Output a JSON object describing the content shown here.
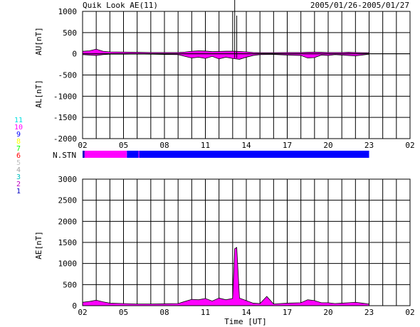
{
  "header": {
    "title": "Quik Look AE(11)",
    "date_range": "2005/01/26-2005/01/27"
  },
  "station_legend": [
    {
      "label": "11",
      "color": "#00e0e0"
    },
    {
      "label": "10",
      "color": "#ff00ff"
    },
    {
      "label": "9",
      "color": "#0000ff"
    },
    {
      "label": "8",
      "color": "#ffff00"
    },
    {
      "label": "7",
      "color": "#00ff00"
    },
    {
      "label": "6",
      "color": "#ff0000"
    },
    {
      "label": "5",
      "color": "#c0c0c0"
    },
    {
      "label": "4",
      "color": "#a0a0a0"
    },
    {
      "label": "3",
      "color": "#00c0c0"
    },
    {
      "label": "2",
      "color": "#c000c0"
    },
    {
      "label": "1",
      "color": "#0000c0"
    }
  ],
  "nstn_label": "N.STN",
  "xlabel": "Time [UT]",
  "chart_data": [
    {
      "type": "area",
      "panel": "AU/AL",
      "ylabels": [
        "AU[nT]",
        "AL[nT]"
      ],
      "ylim": [
        -2000,
        1000
      ],
      "yticks": [
        1000,
        500,
        0,
        -500,
        -1000,
        -1500,
        -2000
      ],
      "xlim": [
        2,
        26
      ],
      "xticks": [
        "02",
        "05",
        "08",
        "11",
        "14",
        "17",
        "20",
        "23",
        "02"
      ],
      "grid": true,
      "fill_color": "#ff00ff",
      "x": [
        2,
        2.5,
        3,
        3.5,
        4,
        5,
        6,
        7,
        8,
        9,
        9.5,
        10,
        10.5,
        11,
        11.5,
        12,
        12.5,
        13,
        13.5,
        14,
        14.5,
        15,
        16,
        17,
        18,
        18.5,
        19,
        19.5,
        20,
        20.5,
        21,
        21.5,
        22,
        22.5,
        23
      ],
      "series": [
        {
          "name": "AU",
          "values": [
            60,
            70,
            110,
            60,
            45,
            40,
            35,
            30,
            30,
            30,
            40,
            60,
            70,
            65,
            50,
            55,
            60,
            60,
            55,
            45,
            30,
            25,
            25,
            30,
            30,
            35,
            40,
            35,
            30,
            30,
            30,
            35,
            30,
            25,
            25
          ]
        },
        {
          "name": "AL",
          "values": [
            -20,
            -30,
            -40,
            -20,
            -10,
            -10,
            -5,
            -10,
            -15,
            -20,
            -60,
            -100,
            -80,
            -110,
            -60,
            -120,
            -80,
            -110,
            -130,
            -80,
            -40,
            -20,
            -15,
            -30,
            -40,
            -100,
            -90,
            -30,
            -40,
            -20,
            -30,
            -40,
            -50,
            -30,
            -10
          ]
        }
      ]
    },
    {
      "type": "area",
      "panel": "N.STN",
      "label": "N.STN",
      "x": [
        2,
        2.15,
        5.2,
        5.25,
        6.1,
        6.15,
        23
      ],
      "values": [
        1,
        10,
        10,
        9,
        10,
        9,
        10
      ],
      "xlim": [
        2,
        26
      ]
    },
    {
      "type": "area",
      "panel": "AE",
      "ylabel": "AE[nT]",
      "ylim": [
        0,
        3000
      ],
      "yticks": [
        3000,
        2500,
        2000,
        1500,
        1000,
        500,
        0
      ],
      "xlim": [
        2,
        26
      ],
      "xticks": [
        "02",
        "05",
        "08",
        "11",
        "14",
        "17",
        "20",
        "23",
        "02"
      ],
      "grid": true,
      "fill_color": "#ff00ff",
      "x": [
        2,
        2.5,
        3,
        3.5,
        4,
        5,
        6,
        7,
        8,
        9,
        9.5,
        10,
        10.5,
        11,
        11.5,
        12,
        12.5,
        13,
        13.15,
        13.3,
        13.5,
        14,
        14.5,
        15,
        15.5,
        16,
        17,
        18,
        18.5,
        19,
        19.5,
        20,
        20.5,
        21,
        21.5,
        22,
        22.5,
        23
      ],
      "values": [
        80,
        100,
        130,
        90,
        60,
        50,
        40,
        40,
        45,
        50,
        100,
        150,
        140,
        170,
        110,
        180,
        140,
        170,
        1350,
        1380,
        180,
        120,
        60,
        50,
        220,
        40,
        60,
        70,
        140,
        120,
        70,
        70,
        50,
        60,
        70,
        80,
        60,
        40
      ]
    }
  ]
}
